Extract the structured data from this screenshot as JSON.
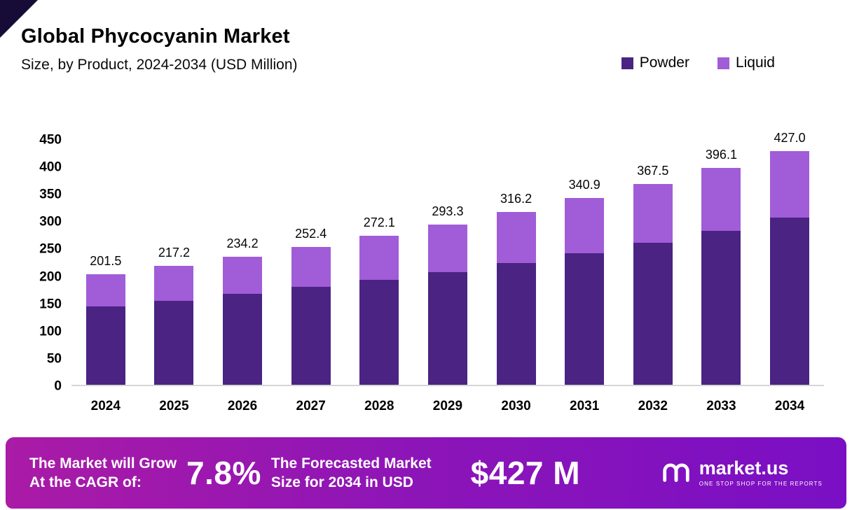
{
  "chart_data": {
    "type": "bar",
    "stacked": true,
    "title": "Global Phycocyanin Market",
    "subtitle": "Size, by Product, 2024-2034 (USD Million)",
    "categories": [
      "2024",
      "2025",
      "2026",
      "2027",
      "2028",
      "2029",
      "2030",
      "2031",
      "2032",
      "2033",
      "2034"
    ],
    "series": [
      {
        "name": "Powder",
        "color": "#4a2383",
        "values": [
          143.0,
          153.5,
          166.0,
          179.0,
          192.0,
          206.0,
          223.0,
          240.0,
          259.5,
          281.0,
          306.0
        ]
      },
      {
        "name": "Liquid",
        "color": "#a15cd8",
        "values": [
          58.5,
          63.7,
          68.2,
          73.4,
          80.1,
          87.3,
          93.2,
          100.9,
          108.0,
          115.1,
          121.0
        ]
      }
    ],
    "totals": [
      201.5,
      217.2,
      234.2,
      252.4,
      272.1,
      293.3,
      316.2,
      340.9,
      367.5,
      396.1,
      427.0
    ],
    "ylim": [
      0,
      450
    ],
    "ytick_step": 50,
    "grid": false,
    "legend_position": "top-right"
  },
  "banner": {
    "cagr_label_line1": "The Market will Grow",
    "cagr_label_line2": "At the CAGR of:",
    "cagr_value": "7.8%",
    "forecast_label_line1": "The Forecasted Market",
    "forecast_label_line2": "Size for 2034 in USD",
    "forecast_value": "$427 M",
    "brand": "market.us",
    "tagline": "ONE STOP SHOP FOR THE REPORTS"
  },
  "colors": {
    "powder": "#4a2383",
    "liquid": "#a15cd8",
    "banner_gradient_start": "#aa1ba6",
    "banner_gradient_end": "#7a0fc4",
    "corner": "#170b38"
  }
}
